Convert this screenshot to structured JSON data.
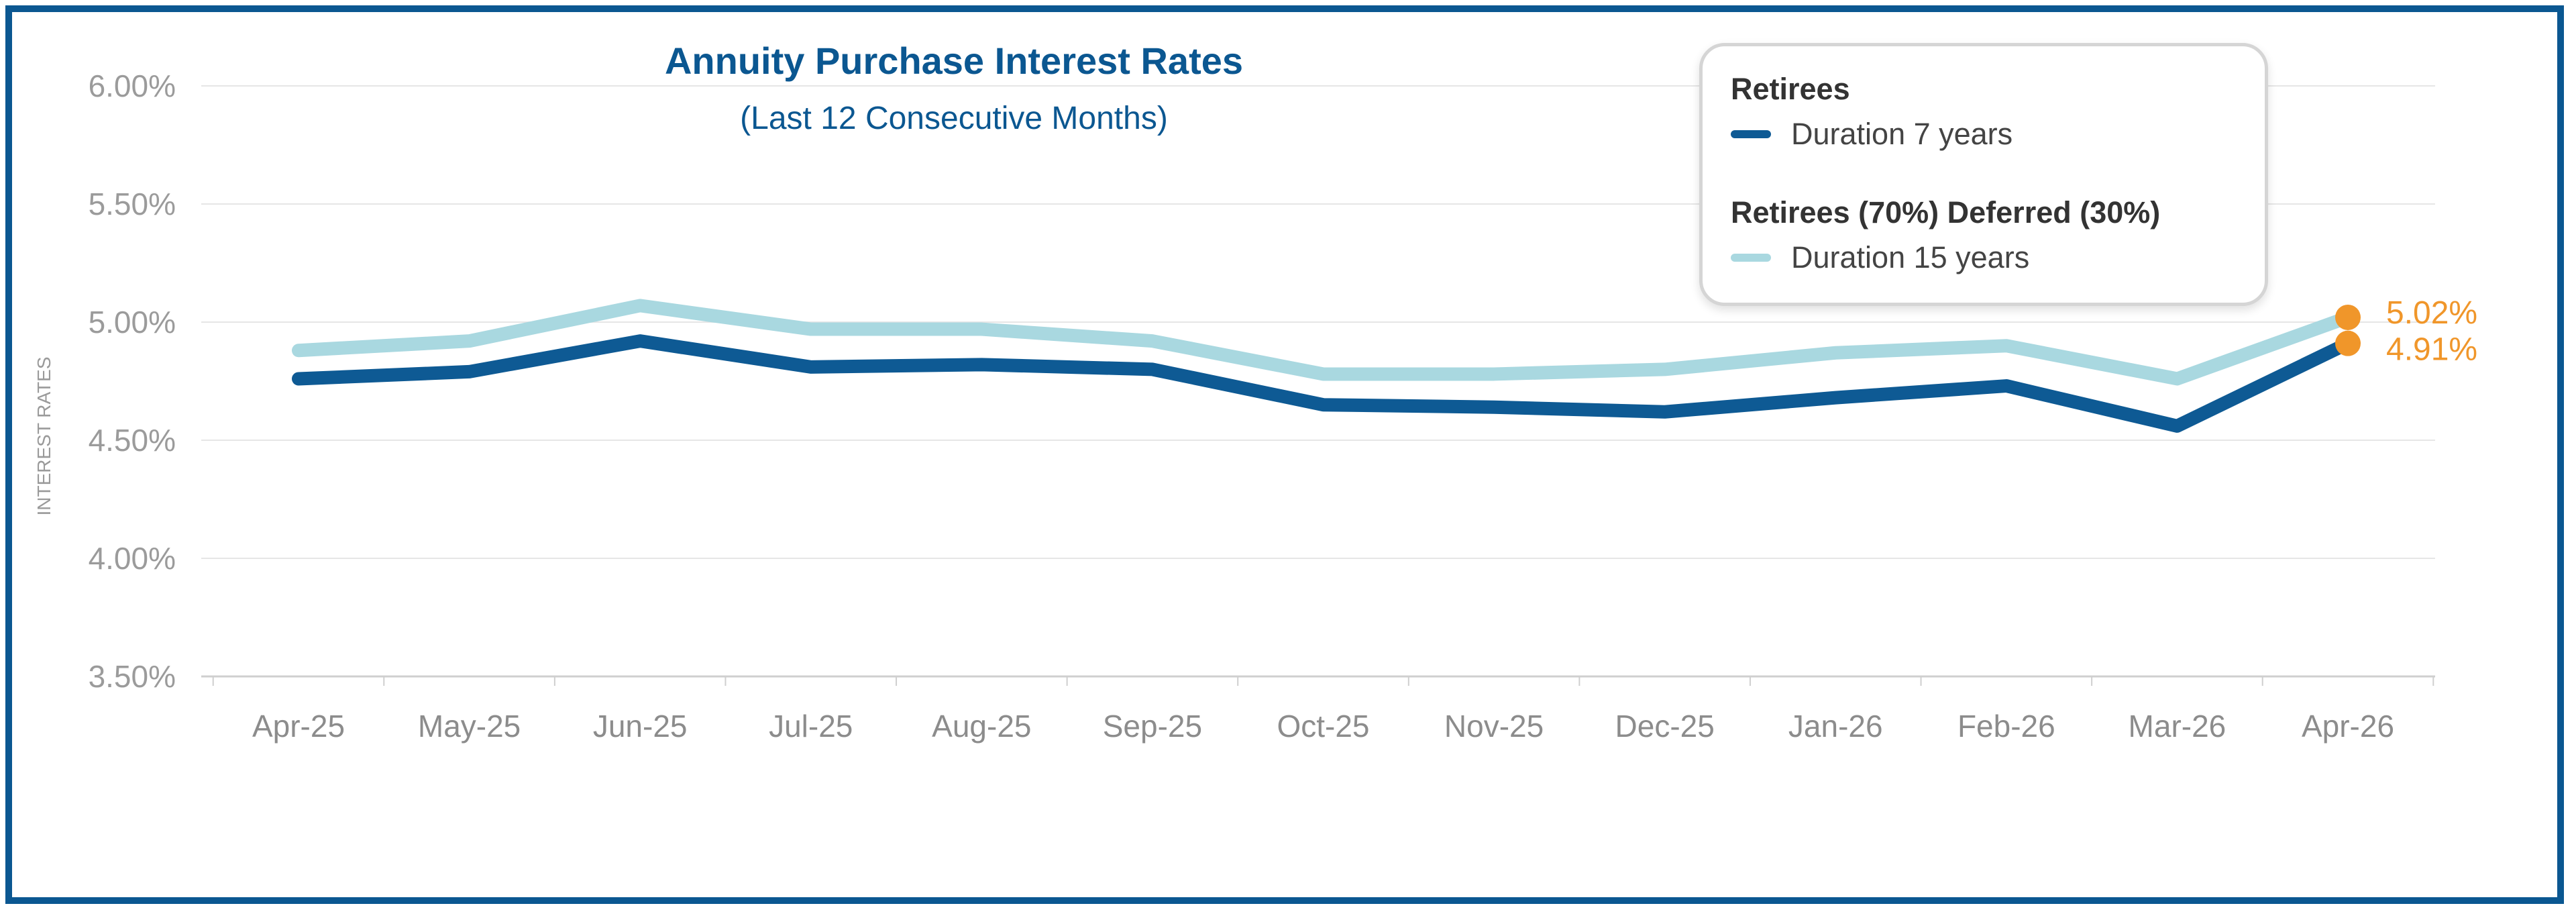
{
  "chart_data": {
    "type": "line",
    "title": "Annuity Purchase Interest Rates",
    "subtitle": "(Last 12 Consecutive Months)",
    "xlabel": "",
    "ylabel": "INTEREST RATES",
    "categories": [
      "Apr-25",
      "May-25",
      "Jun-25",
      "Jul-25",
      "Aug-25",
      "Sep-25",
      "Oct-25",
      "Nov-25",
      "Dec-25",
      "Jan-26",
      "Feb-26",
      "Mar-26",
      "Apr-26"
    ],
    "ylim": [
      3.5,
      6.0
    ],
    "yticks": [
      3.5,
      4.0,
      4.5,
      5.0,
      5.5,
      6.0
    ],
    "ytick_labels": [
      "3.50%",
      "4.00%",
      "4.50%",
      "5.00%",
      "5.50%",
      "6.00%"
    ],
    "grid": true,
    "legend_position": "top-right",
    "series": [
      {
        "group": "Retirees",
        "name": "Duration 7 years",
        "color": "#0e5a94",
        "values": [
          4.76,
          4.79,
          4.92,
          4.81,
          4.82,
          4.8,
          4.65,
          4.64,
          4.62,
          4.68,
          4.73,
          4.56,
          4.91
        ],
        "end_label": "4.91%"
      },
      {
        "group": "Retirees (70%) Deferred (30%)",
        "name": "Duration 15 years",
        "color": "#a9d8e0",
        "values": [
          4.88,
          4.92,
          5.07,
          4.97,
          4.97,
          4.92,
          4.78,
          4.78,
          4.8,
          4.87,
          4.9,
          4.76,
          5.02
        ],
        "end_label": "5.02%"
      }
    ],
    "end_marker_color": "#f0962a"
  }
}
